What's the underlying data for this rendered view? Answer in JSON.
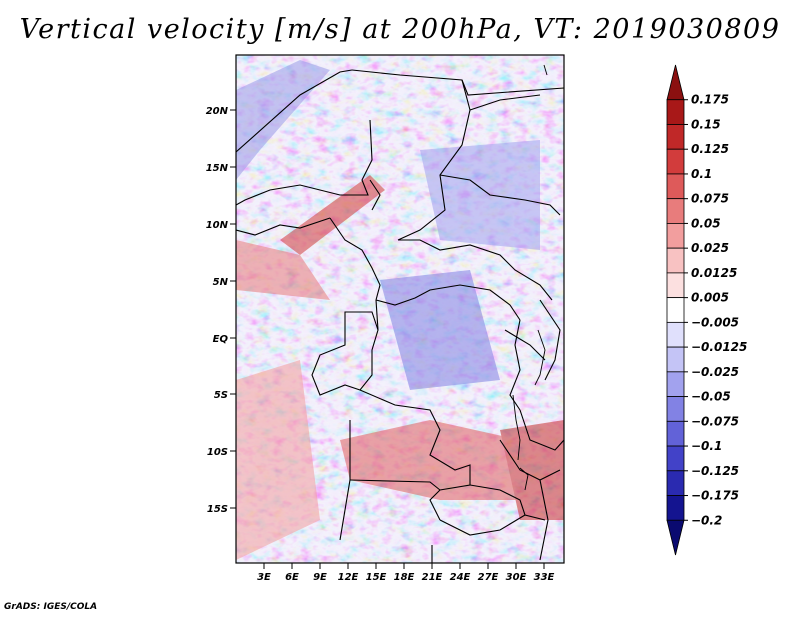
{
  "title": "Vertical velocity [m/s] at 200hPa, VT: 2019030809",
  "credit": "GrADS: IGES/COLA",
  "map": {
    "lat_labels": [
      "20N",
      "15N",
      "10N",
      "5N",
      "EQ",
      "5S",
      "10S",
      "15S"
    ],
    "lon_labels": [
      "3E",
      "6E",
      "9E",
      "12E",
      "15E",
      "18E",
      "21E",
      "24E",
      "27E",
      "30E",
      "33E"
    ]
  },
  "colorbar": {
    "labels": [
      "0.175",
      "0.15",
      "0.125",
      "0.1",
      "0.075",
      "0.05",
      "0.025",
      "0.0125",
      "0.005",
      "−0.005",
      "−0.0125",
      "−0.025",
      "−0.05",
      "−0.075",
      "−0.1",
      "−0.125",
      "−0.175",
      "−0.2"
    ],
    "colors": [
      "#8b1010",
      "#a81818",
      "#c02828",
      "#d23c3c",
      "#de5a5a",
      "#e87c7c",
      "#f29e9e",
      "#f8c2c2",
      "#fce0e0",
      "#ffffff",
      "#e0e0fc",
      "#c4c4f6",
      "#a2a2ee",
      "#8282e4",
      "#6262d8",
      "#4242c8",
      "#2a2ab0",
      "#141490",
      "#0a0a70"
    ]
  }
}
